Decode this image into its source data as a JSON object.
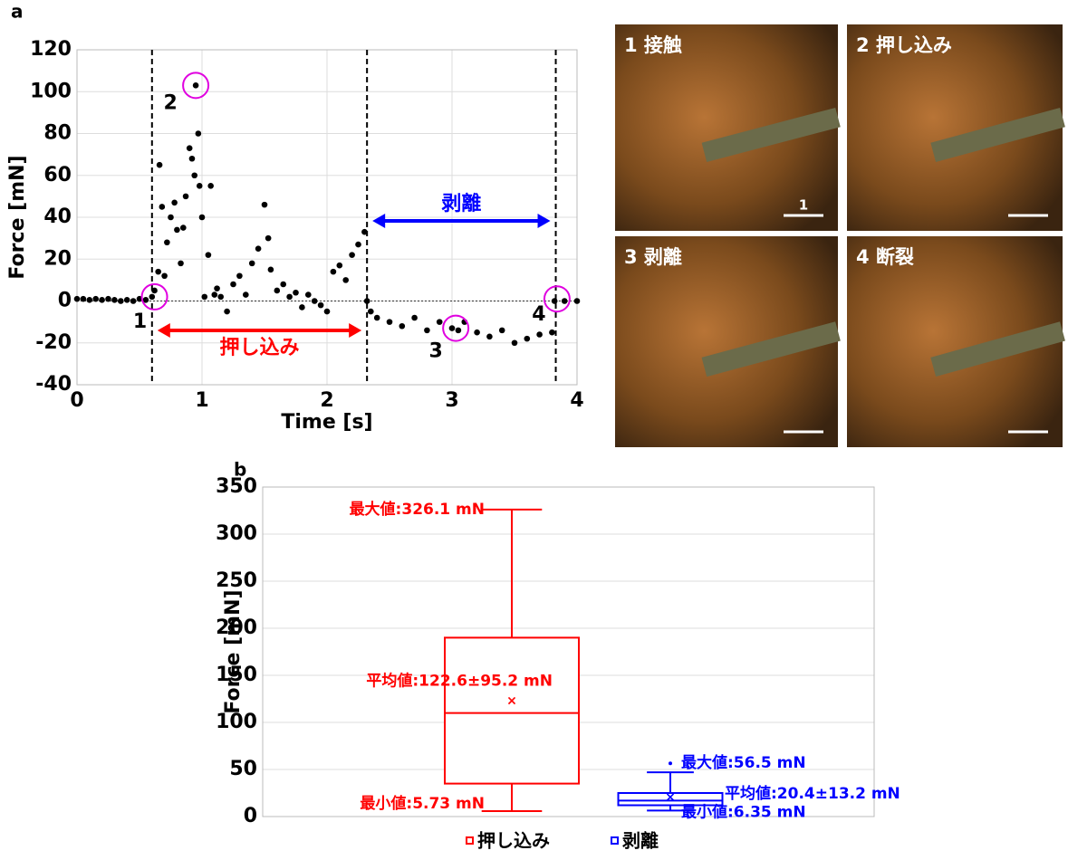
{
  "panel_labels": [
    "a",
    "b"
  ],
  "chart_data": [
    {
      "type": "scatter",
      "x_label": "Time [s]",
      "y_label": "Force [mN]",
      "x": [
        0,
        0.05,
        0.1,
        0.15,
        0.2,
        0.25,
        0.3,
        0.35,
        0.4,
        0.45,
        0.5,
        0.55,
        0.6,
        0.62,
        0.65,
        0.66,
        0.68,
        0.7,
        0.72,
        0.75,
        0.78,
        0.8,
        0.83,
        0.85,
        0.87,
        0.9,
        0.92,
        0.94,
        0.95,
        0.97,
        0.98,
        1.0,
        1.02,
        1.05,
        1.07,
        1.1,
        1.12,
        1.15,
        1.2,
        1.25,
        1.3,
        1.35,
        1.4,
        1.45,
        1.5,
        1.53,
        1.55,
        1.6,
        1.65,
        1.7,
        1.75,
        1.8,
        1.85,
        1.9,
        1.95,
        2.0,
        2.05,
        2.1,
        2.15,
        2.2,
        2.25,
        2.3,
        2.32,
        2.35,
        2.4,
        2.5,
        2.6,
        2.7,
        2.8,
        2.9,
        3.0,
        3.05,
        3.1,
        3.2,
        3.3,
        3.4,
        3.5,
        3.6,
        3.7,
        3.8,
        3.82,
        3.9,
        4.0
      ],
      "values": [
        1,
        1,
        0.5,
        1,
        0.5,
        1,
        0.5,
        0,
        0.5,
        0,
        1,
        0.5,
        2,
        5,
        14,
        65,
        45,
        12,
        28,
        40,
        47,
        34,
        18,
        35,
        50,
        73,
        68,
        60,
        103,
        80,
        55,
        40,
        2,
        22,
        55,
        3,
        6,
        2,
        -5,
        8,
        12,
        3,
        18,
        25,
        46,
        30,
        15,
        5,
        8,
        2,
        4,
        -3,
        3,
        0,
        -2,
        -5,
        14,
        17,
        10,
        22,
        27,
        33,
        0,
        -5,
        -8,
        -10,
        -12,
        -8,
        -14,
        -10,
        -13,
        -14,
        -10,
        -15,
        -17,
        -14,
        -20,
        -18,
        -16,
        -15,
        0,
        0,
        0
      ],
      "color": "#000000",
      "xlim": [
        0,
        4
      ],
      "ylim": [
        -40,
        120
      ],
      "xticks": [
        0,
        1,
        2,
        3,
        4
      ],
      "yticks": [
        -40,
        -20,
        0,
        20,
        40,
        60,
        80,
        100,
        120
      ],
      "grid": true,
      "phase_boundaries": [
        0.6,
        2.32,
        3.83
      ],
      "phases": [
        {
          "name": "押し込み",
          "color": "#ff0000"
        },
        {
          "name": "剥離",
          "color": "#0000ff"
        }
      ],
      "events": [
        {
          "label": "1",
          "x": 0.62,
          "y": 2
        },
        {
          "label": "2",
          "x": 0.95,
          "y": 103
        },
        {
          "label": "3",
          "x": 3.03,
          "y": -13
        },
        {
          "label": "4",
          "x": 3.84,
          "y": 1
        }
      ],
      "event_color": "#e000e0"
    },
    {
      "type": "box",
      "y_label": "Force [mN]",
      "ylim": [
        0,
        350
      ],
      "yticks": [
        0,
        50,
        100,
        150,
        200,
        250,
        300,
        350
      ],
      "grid": true,
      "series": [
        {
          "name": "押し込み",
          "color": "#ff0000",
          "min": 5.73,
          "q1": 35,
          "median": 110,
          "q3": 190,
          "max": 326.1,
          "mean": 122.6,
          "outliers": [],
          "labels": {
            "max": "最大値:326.1 mN",
            "mean": "平均値:122.6±95.2 mN",
            "min": "最小値:5.73 mN"
          }
        },
        {
          "name": "剥離",
          "color": "#0000ff",
          "min": 6.35,
          "q1": 12,
          "median": 17,
          "q3": 25,
          "max": 47,
          "mean": 20.4,
          "outliers": [
            56.5
          ],
          "labels": {
            "max": "最大値:56.5 mN",
            "mean": "平均値:20.4±13.2 mN",
            "min": "最小値:6.35 mN"
          }
        }
      ]
    }
  ],
  "photos": [
    {
      "label": "1 接触",
      "scale_label": "1"
    },
    {
      "label": "2 押し込み"
    },
    {
      "label": "3 剥離"
    },
    {
      "label": "4 断裂"
    }
  ]
}
